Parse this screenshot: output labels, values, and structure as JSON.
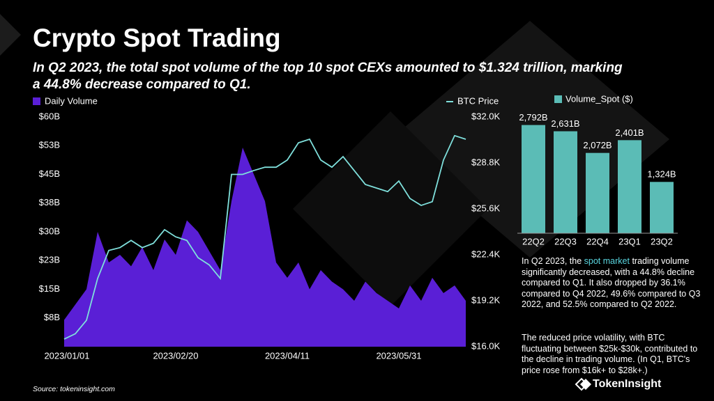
{
  "title": "Crypto Spot Trading",
  "subtitle": [
    "In Q2 2023, the total spot volume of the top 10 spot CEXs amounted to $1.324 trillion, marking",
    "a 44.8% decrease compared to Q1."
  ],
  "notes": [
    {
      "before": "In Q2 2023, the ",
      "highlight": "spot market",
      "after": " trading volume significantly decreased, with a 44.8% decline compared to Q1. It also dropped by 36.1% compared to Q4 2022, 49.6% compared to Q3 2022, and 52.5% compared to Q2 2022."
    },
    {
      "before": "The reduced price volatility, with BTC fluctuating between $25k-$30k, contributed to the decline in trading volume. (In Q1, BTC's price rose from $16k+ to $28k+.)"
    }
  ],
  "source": "Source: tokeninsight.com",
  "logo": "TokenInsight",
  "chart_data": [
    {
      "type": "combo",
      "x": [
        "2023/01/01",
        "2023/01/06",
        "2023/01/11",
        "2023/01/16",
        "2023/01/21",
        "2023/01/26",
        "2023/01/31",
        "2023/02/05",
        "2023/02/10",
        "2023/02/15",
        "2023/02/20",
        "2023/02/25",
        "2023/03/02",
        "2023/03/07",
        "2023/03/12",
        "2023/03/17",
        "2023/03/22",
        "2023/03/27",
        "2023/04/01",
        "2023/04/06",
        "2023/04/11",
        "2023/04/16",
        "2023/04/21",
        "2023/04/26",
        "2023/05/01",
        "2023/05/06",
        "2023/05/11",
        "2023/05/16",
        "2023/05/21",
        "2023/05/26",
        "2023/05/31",
        "2023/06/05",
        "2023/06/10",
        "2023/06/15",
        "2023/06/20",
        "2023/06/25",
        "2023/06/30"
      ],
      "xlim": [
        "2023/01/01",
        "2023/06/30"
      ],
      "xticks": [
        "2023/01/01",
        "2023/02/20",
        "2023/04/11",
        "2023/05/31"
      ],
      "ylim": [
        0,
        60
      ],
      "yticks": [
        {
          "value": 7.5,
          "label": "$8B"
        },
        {
          "value": 15,
          "label": "$15B"
        },
        {
          "value": 22.5,
          "label": "$23B"
        },
        {
          "value": 30,
          "label": "$30B"
        },
        {
          "value": 37.5,
          "label": "$38B"
        },
        {
          "value": 45,
          "label": "$45B"
        },
        {
          "value": 52.5,
          "label": "$53B"
        },
        {
          "value": 60,
          "label": "$60B"
        }
      ],
      "y2lim": [
        16000,
        32000
      ],
      "y2ticks": [
        {
          "value": 16000,
          "label": "$16.0K"
        },
        {
          "value": 19200,
          "label": "$19.2K"
        },
        {
          "value": 22400,
          "label": "$22.4K"
        },
        {
          "value": 25600,
          "label": "$25.6K"
        },
        {
          "value": 28800,
          "label": "$28.8K"
        },
        {
          "value": 32000,
          "label": "$32.0K"
        }
      ],
      "series": [
        {
          "name": "Daily Volume",
          "color": "#5a1fd6",
          "values": [
            7,
            11,
            15,
            30,
            22,
            24,
            21,
            26,
            20,
            28,
            24,
            33,
            30,
            25,
            20,
            38,
            52,
            45,
            38,
            22,
            18,
            22,
            15,
            20,
            17,
            15,
            12,
            17,
            14,
            12,
            10,
            16,
            12,
            18,
            14,
            16,
            12
          ]
        },
        {
          "name": "BTC Price",
          "color": "#7fe0dc",
          "axis": "y2",
          "values": [
            16530,
            16900,
            17840,
            20750,
            22700,
            22900,
            23400,
            22900,
            23200,
            24150,
            23650,
            23400,
            22200,
            21700,
            20750,
            28000,
            28000,
            28270,
            28500,
            28500,
            29000,
            30200,
            30450,
            29000,
            28500,
            29240,
            28270,
            27300,
            27050,
            26800,
            27540,
            26320,
            25840,
            26100,
            29000,
            30700,
            30450
          ]
        }
      ]
    },
    {
      "type": "bar",
      "categories": [
        "22Q2",
        "22Q3",
        "22Q4",
        "23Q1",
        "23Q2"
      ],
      "series": [
        {
          "name": "Volume_Spot ($)",
          "color": "#5bbcb6",
          "values": [
            2792,
            2631,
            2072,
            2401,
            1324
          ],
          "value_labels": [
            "2,792B",
            "2,631B",
            "2,072B",
            "2,401B",
            "1,324B"
          ]
        }
      ],
      "ylim": [
        0,
        3000
      ]
    }
  ]
}
